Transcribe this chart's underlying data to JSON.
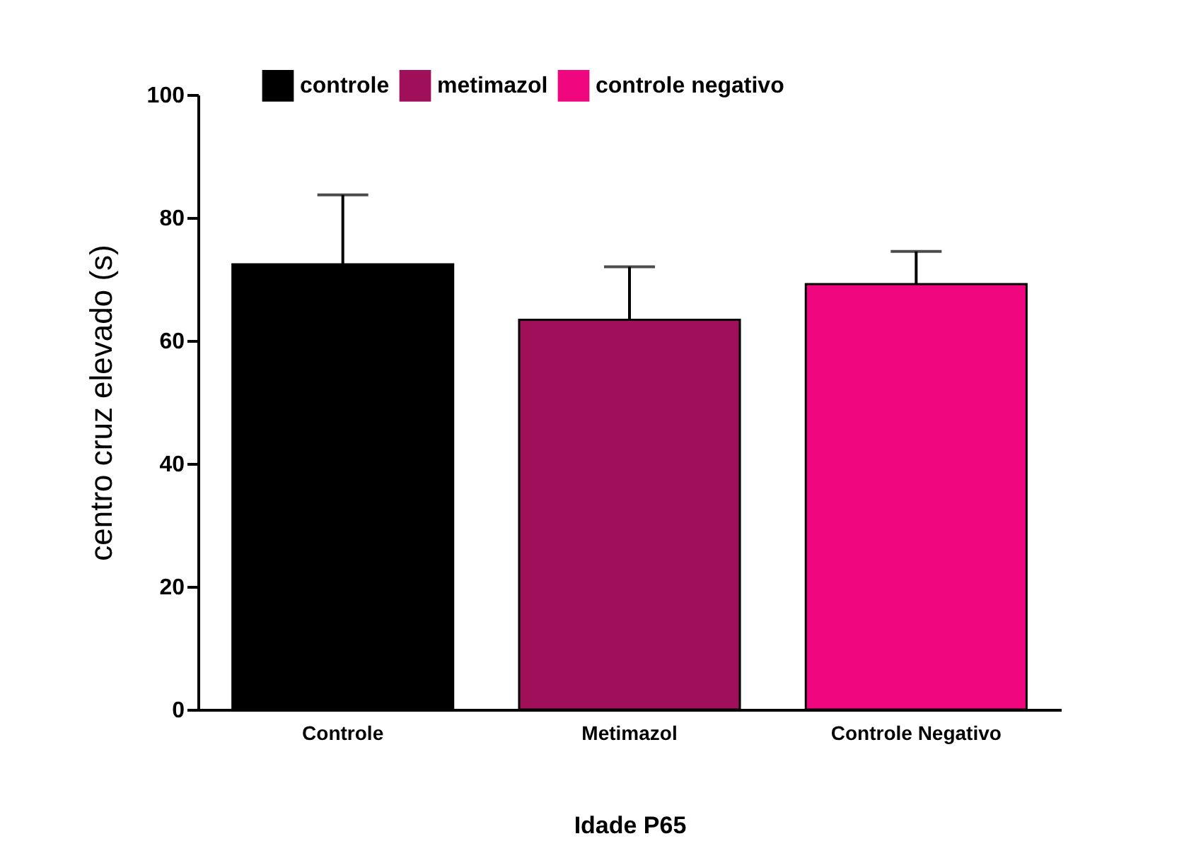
{
  "chart_data": {
    "type": "bar",
    "xlabel": "Idade P65",
    "ylabel": "centro cruz elevado (s)",
    "categories": [
      "Controle",
      "Metimazol",
      "Controle Negativo"
    ],
    "series": [
      {
        "name": "controle",
        "color": "#000000",
        "values": [
          72.4,
          null,
          null
        ],
        "errors": [
          [
            72.4,
            83.7
          ],
          null,
          null
        ]
      },
      {
        "name": "metimazol",
        "color": "#a0105a",
        "values": [
          null,
          63.4,
          null
        ],
        "errors": [
          null,
          [
            63.4,
            72
          ],
          null
        ]
      },
      {
        "name": "controle negativo",
        "color": "#f0077f",
        "values": [
          null,
          null,
          69.2
        ],
        "errors": [
          null,
          null,
          [
            69.2,
            74.5
          ]
        ]
      }
    ],
    "ylim": [
      0,
      100
    ],
    "yticks": [
      0,
      20,
      40,
      60,
      80,
      100
    ],
    "grid": false,
    "legend": "top"
  }
}
